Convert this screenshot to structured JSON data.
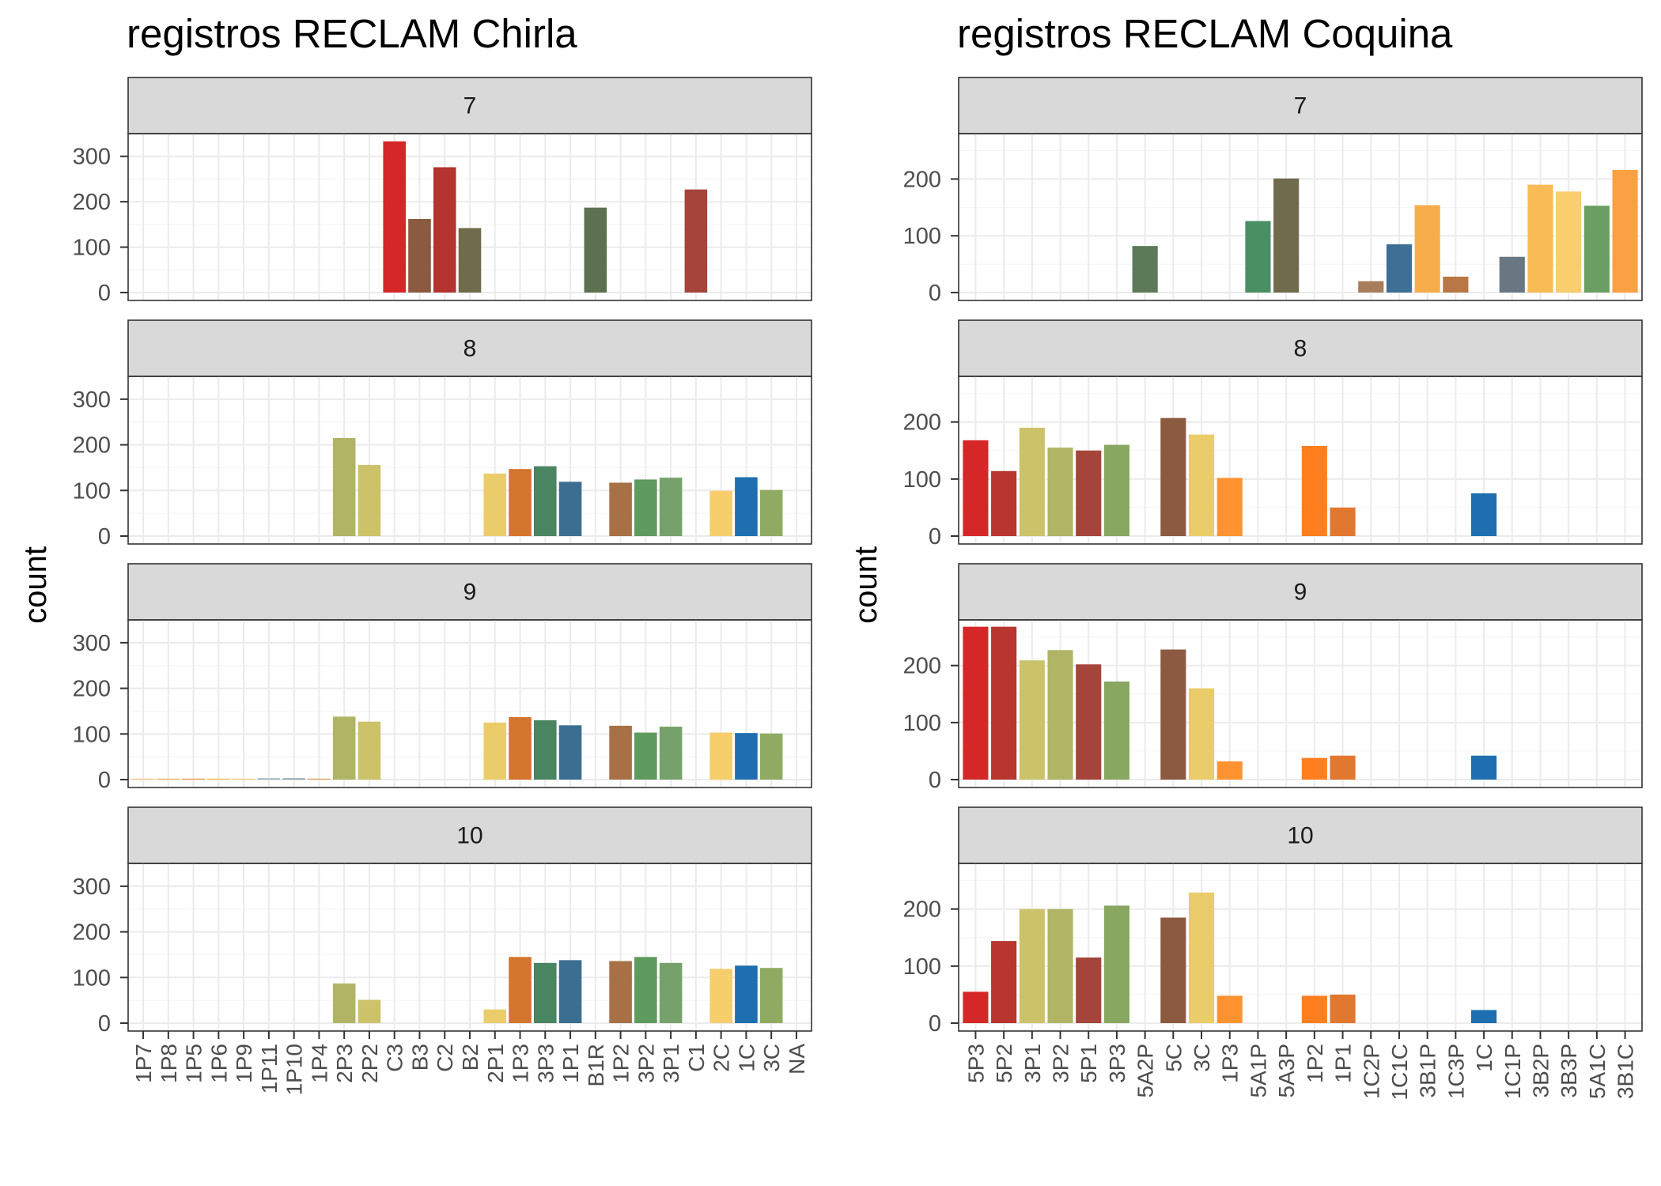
{
  "chart_data": [
    {
      "type": "bar",
      "title": "registros RECLAM Chirla",
      "ylabel": "count",
      "xlabel": "",
      "ylim": [
        0,
        350
      ],
      "yticks": [
        0,
        100,
        200,
        300
      ],
      "categories": [
        "1P7",
        "1P8",
        "1P5",
        "1P6",
        "1P9",
        "1P11",
        "1P10",
        "1P4",
        "2P3",
        "2P2",
        "C3",
        "B3",
        "C2",
        "B2",
        "2P1",
        "1P3",
        "3P3",
        "1P1",
        "B1R",
        "1P2",
        "3P2",
        "3P1",
        "C1",
        "2C",
        "1C",
        "3C",
        "NA"
      ],
      "colors": {
        "1P7": "#f5c97e",
        "1P8": "#f2b05a",
        "1P5": "#ef9a45",
        "1P6": "#f7b94f",
        "1P9": "#f9cf72",
        "1P11": "#9db2bd",
        "1P10": "#8fa3ad",
        "1P4": "#e0a15a",
        "2P3": "#b0b566",
        "2P2": "#ccc26a",
        "C3": "#d62728",
        "B3": "#8c5a40",
        "C2": "#b5342f",
        "B2": "#6f6b4c",
        "2P1": "#eacc6b",
        "1P3": "#d4752e",
        "3P3": "#4a8561",
        "1P1": "#3c6e91",
        "B1R": "#5c7150",
        "1P2": "#a87145",
        "3P2": "#5f9a5e",
        "3P1": "#77a16a",
        "C1": "#a4443a",
        "2C": "#f8cd6c",
        "1C": "#1f6fb0",
        "3C": "#8fab62",
        "NA": "#999999"
      },
      "facets": [
        {
          "label": "7",
          "values": {
            "C3": 333,
            "B3": 162,
            "C2": 276,
            "B2": 142,
            "B1R": 187,
            "C1": 227
          }
        },
        {
          "label": "8",
          "values": {
            "2P3": 215,
            "2P2": 156,
            "2P1": 137,
            "1P3": 147,
            "3P3": 153,
            "1P1": 119,
            "1P2": 117,
            "3P2": 124,
            "3P1": 128,
            "2C": 99,
            "1C": 129,
            "3C": 101
          }
        },
        {
          "label": "9",
          "values": {
            "1P7": 2,
            "1P8": 2,
            "1P5": 2,
            "1P6": 2,
            "1P9": 2,
            "1P11": 3,
            "1P10": 3,
            "1P4": 2,
            "2P3": 138,
            "2P2": 127,
            "2P1": 125,
            "1P3": 137,
            "3P3": 130,
            "1P1": 119,
            "1P2": 118,
            "3P2": 103,
            "3P1": 116,
            "2C": 103,
            "1C": 102,
            "3C": 101
          }
        },
        {
          "label": "10",
          "values": {
            "2P3": 87,
            "2P2": 51,
            "2P1": 30,
            "1P3": 145,
            "3P3": 132,
            "1P1": 138,
            "1P2": 136,
            "3P2": 145,
            "3P1": 132,
            "2C": 119,
            "1C": 126,
            "3C": 121
          }
        }
      ]
    },
    {
      "type": "bar",
      "title": "registros RECLAM Coquina",
      "ylabel": "count",
      "xlabel": "",
      "ylim": [
        0,
        280
      ],
      "yticks": [
        0,
        100,
        200
      ],
      "categories": [
        "5P3",
        "5P2",
        "3P1",
        "3P2",
        "5P1",
        "3P3",
        "5A2P",
        "5C",
        "3C",
        "1P3",
        "5A1P",
        "5A3P",
        "1P2",
        "1P1",
        "1C2P",
        "1C1C",
        "3B1P",
        "1C3P",
        "1C",
        "1C1P",
        "3B2P",
        "3B3P",
        "5A1C",
        "3B1C"
      ],
      "colors": {
        "5P3": "#d62728",
        "5P2": "#b83530",
        "3P1": "#ccc26a",
        "3P2": "#b0b566",
        "5P1": "#a4443a",
        "3P3": "#88a862",
        "5A2P": "#5c7a58",
        "5C": "#8c5a40",
        "3C": "#eacc6b",
        "1P3": "#ff9331",
        "5A1P": "#4a8f63",
        "5A3P": "#6f6b4c",
        "1P2": "#ff7f1f",
        "1P1": "#e2772f",
        "1C2P": "#a87d5a",
        "1C1C": "#3f6f95",
        "3B1P": "#f7ae4a",
        "1C3P": "#b87744",
        "1C": "#1f6fb0",
        "1C1P": "#687782",
        "3B2P": "#f9bb55",
        "3B3P": "#facd6e",
        "5A1C": "#6b9e63",
        "3B1C": "#fba043"
      },
      "facets": [
        {
          "label": "7",
          "values": {
            "5A2P": 82,
            "5A1P": 126,
            "5A3P": 201,
            "1C2P": 20,
            "1C1C": 85,
            "3B1P": 154,
            "1C3P": 28,
            "1C1P": 63,
            "3B2P": 190,
            "3B3P": 178,
            "5A1C": 153,
            "3B1C": 216
          }
        },
        {
          "label": "8",
          "values": {
            "5P3": 168,
            "5P2": 114,
            "3P1": 190,
            "3P2": 155,
            "5P1": 150,
            "3P3": 160,
            "5C": 207,
            "3C": 178,
            "1P3": 102,
            "1P2": 158,
            "1P1": 50,
            "1C": 75
          }
        },
        {
          "label": "9",
          "values": {
            "5P3": 268,
            "5P2": 268,
            "3P1": 209,
            "3P2": 227,
            "5P1": 202,
            "3P3": 172,
            "5C": 228,
            "3C": 160,
            "1P3": 32,
            "1P2": 38,
            "1P1": 42,
            "1C": 42
          }
        },
        {
          "label": "10",
          "values": {
            "5P3": 55,
            "5P2": 144,
            "3P1": 200,
            "3P2": 200,
            "5P1": 115,
            "3P3": 206,
            "5C": 185,
            "3C": 229,
            "1P3": 48,
            "1P2": 48,
            "1P1": 50,
            "1C": 23
          }
        }
      ]
    }
  ]
}
